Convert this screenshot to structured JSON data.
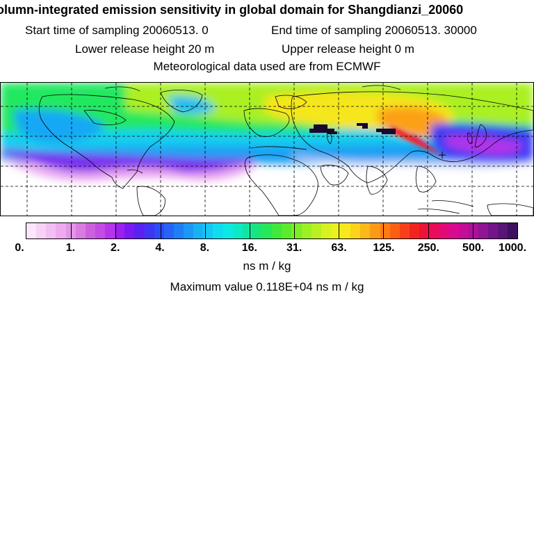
{
  "title": "olumn-integrated emission sensitivity in global domain for Shangdianzi_20060",
  "sampling": {
    "start_label": "Start time of sampling 20060513.     0",
    "end_label": "End time of sampling 20060513. 30000"
  },
  "release": {
    "lower_label": "Lower release height   20 m",
    "upper_label": "Upper release height    0 m"
  },
  "met_data": "Meteorological data used are from ECMWF",
  "map": {
    "projection": "lat-lon global",
    "grid": "dashed",
    "colors": {
      "background_fill": "#ffffff",
      "coastline": "#000000"
    }
  },
  "colorbar": {
    "unit_label": "ns m / kg",
    "tick_labels": [
      "0.",
      "1.",
      "2.",
      "4.",
      "8.",
      "16.",
      "31.",
      "63.",
      "125.",
      "250.",
      "500.",
      "1000."
    ],
    "colors": [
      "#fbe6fb",
      "#f7d2f7",
      "#f2bff2",
      "#eeaaee",
      "#e395e6",
      "#d97ce0",
      "#ce60e0",
      "#c44be4",
      "#b634ea",
      "#9b20ee",
      "#7a1af0",
      "#5a22f2",
      "#3f36f4",
      "#2e4cf5",
      "#2764f6",
      "#1f7ef6",
      "#1b98f6",
      "#17b2f5",
      "#14c8f3",
      "#10dcf0",
      "#0ce9e4",
      "#0ce9c4",
      "#10e6a0",
      "#18e67c",
      "#26e858",
      "#3ee93c",
      "#5aeb2c",
      "#7aee26",
      "#9cf024",
      "#baf022",
      "#d6f220",
      "#ecf01e",
      "#f8e81c",
      "#fcd21a",
      "#fcb818",
      "#fc9a16",
      "#fc7c14",
      "#fc5e14",
      "#f84018",
      "#f2241e",
      "#ec1238",
      "#ea0c58",
      "#e40a76",
      "#d80a8e",
      "#c40e98",
      "#aa129a",
      "#901494",
      "#74148a",
      "#5a1478",
      "#3e1060"
    ]
  },
  "max_value_label": "Maximum value  0.118E+04 ns m / kg"
}
